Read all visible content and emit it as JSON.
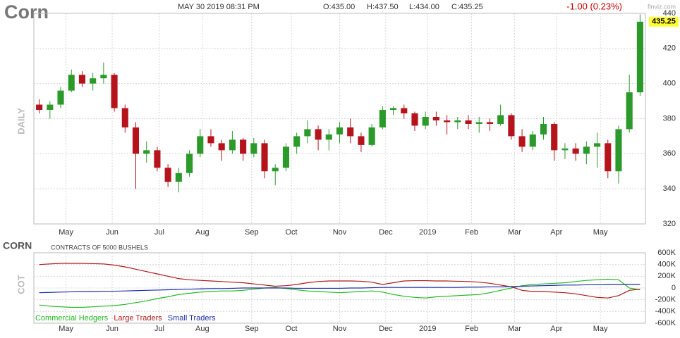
{
  "chart_data": [
    {
      "type": "candlestick",
      "title": "Corn",
      "timestamp": "MAY 30 2019 08:31 PM",
      "ohlc_labels": [
        "O:435.00",
        "H:437.50",
        "L:434.00",
        "C:435.25"
      ],
      "change_label": "-1.00 (0.23%)",
      "brand": "finviz.com",
      "ylabel": "DAILY",
      "last_label": "435.25",
      "up_color": "#2b9a2b",
      "down_color": "#b5141c",
      "grid": true,
      "xlim": [
        0,
        57
      ],
      "xticks": [
        {
          "value": 3.0,
          "label": "May"
        },
        {
          "value": 7.3,
          "label": "Jun"
        },
        {
          "value": 11.7,
          "label": "Jul"
        },
        {
          "value": 15.7,
          "label": "Aug"
        },
        {
          "value": 20.3,
          "label": "Sep"
        },
        {
          "value": 24.0,
          "label": "Oct"
        },
        {
          "value": 28.5,
          "label": "Nov"
        },
        {
          "value": 32.8,
          "label": "Dec"
        },
        {
          "value": 36.7,
          "label": "2019"
        },
        {
          "value": 40.8,
          "label": "Feb"
        },
        {
          "value": 44.8,
          "label": "Mar"
        },
        {
          "value": 48.7,
          "label": "Apr"
        },
        {
          "value": 52.8,
          "label": "May"
        }
      ],
      "ylim": [
        320,
        440
      ],
      "yticks": [
        320,
        340,
        360,
        380,
        400,
        420,
        440
      ],
      "open": [
        388,
        385,
        388,
        396,
        405,
        400,
        403,
        405,
        386,
        375,
        360,
        362,
        352,
        344,
        349,
        360,
        370,
        366,
        362,
        368,
        360,
        366,
        350,
        352,
        364,
        370,
        374,
        368,
        371,
        375,
        370,
        365,
        375,
        385,
        386,
        383,
        376,
        381,
        379,
        378,
        379,
        377,
        378,
        377,
        382,
        370,
        364,
        371,
        377,
        362,
        363,
        360,
        364,
        366,
        350,
        374,
        395
      ],
      "high": [
        391,
        390,
        398,
        408,
        407,
        406,
        412,
        406,
        388,
        378,
        367,
        364,
        354,
        352,
        362,
        374,
        374,
        368,
        373,
        369,
        369,
        368,
        354,
        366,
        372,
        379,
        376,
        374,
        378,
        380,
        372,
        377,
        387,
        387,
        388,
        384,
        384,
        384,
        382,
        381,
        382,
        381,
        380,
        388,
        383,
        374,
        373,
        381,
        378,
        366,
        366,
        367,
        372,
        368,
        376,
        405,
        439.5
      ],
      "low": [
        383,
        380,
        386,
        395,
        398,
        396,
        400,
        384,
        372,
        340,
        355,
        350,
        341,
        338,
        347,
        358,
        364,
        356,
        360,
        356,
        358,
        346,
        342,
        350,
        360,
        366,
        362,
        362,
        366,
        366,
        361,
        364,
        374,
        382,
        380,
        373,
        374,
        376,
        371,
        374,
        374,
        372,
        373,
        376,
        368,
        361,
        362,
        368,
        356,
        357,
        356,
        354,
        352,
        346,
        343,
        372,
        393
      ],
      "close": [
        385,
        388,
        396,
        405,
        400,
        403,
        405,
        386,
        375,
        360,
        362,
        352,
        344,
        349,
        360,
        370,
        366,
        362,
        368,
        360,
        366,
        350,
        352,
        364,
        370,
        374,
        368,
        371,
        375,
        370,
        365,
        375,
        385,
        386,
        383,
        376,
        381,
        379,
        378,
        379,
        377,
        378,
        377,
        382,
        370,
        364,
        371,
        377,
        362,
        363,
        360,
        364,
        366,
        350,
        374,
        395,
        435.25
      ]
    },
    {
      "type": "line",
      "title": "CORN",
      "subtitle": "CONTRACTS OF 5000 BUSHELS",
      "ylabel": "COT",
      "grid": true,
      "xlim": [
        0,
        57
      ],
      "xticks": [
        {
          "value": 3.0,
          "label": "May"
        },
        {
          "value": 7.3,
          "label": "Jun"
        },
        {
          "value": 11.7,
          "label": "Jul"
        },
        {
          "value": 15.7,
          "label": "Aug"
        },
        {
          "value": 20.3,
          "label": "Sep"
        },
        {
          "value": 24.0,
          "label": "Oct"
        },
        {
          "value": 28.5,
          "label": "Nov"
        },
        {
          "value": 32.8,
          "label": "Dec"
        },
        {
          "value": 36.7,
          "label": "2019"
        },
        {
          "value": 40.8,
          "label": "Feb"
        },
        {
          "value": 44.8,
          "label": "Mar"
        },
        {
          "value": 48.7,
          "label": "Apr"
        },
        {
          "value": 52.8,
          "label": "May"
        }
      ],
      "ylim": [
        -600000,
        600000
      ],
      "yticks": [
        {
          "value": 600000,
          "label": "600K"
        },
        {
          "value": 400000,
          "label": "400K"
        },
        {
          "value": 200000,
          "label": "200K"
        },
        0,
        {
          "value": -200000,
          "label": "-200K"
        },
        {
          "value": -400000,
          "label": "-400K"
        },
        {
          "value": -600000,
          "label": "-600K"
        }
      ],
      "series": [
        {
          "name": "Commercial Hedgers",
          "color": "#22b822",
          "values": [
            -290000,
            -310000,
            -320000,
            -330000,
            -330000,
            -320000,
            -310000,
            -300000,
            -280000,
            -250000,
            -220000,
            -180000,
            -150000,
            -110000,
            -90000,
            -70000,
            -60000,
            -50000,
            -50000,
            -40000,
            -20000,
            0,
            10000,
            -10000,
            -30000,
            -50000,
            -60000,
            -70000,
            -80000,
            -70000,
            -60000,
            -50000,
            -70000,
            -110000,
            -140000,
            -160000,
            -170000,
            -150000,
            -140000,
            -130000,
            -120000,
            -110000,
            -80000,
            -40000,
            0,
            40000,
            60000,
            70000,
            80000,
            90000,
            110000,
            130000,
            140000,
            150000,
            140000,
            0,
            -30000
          ]
        },
        {
          "name": "Large Traders",
          "color": "#b01818",
          "values": [
            400000,
            410000,
            420000,
            420000,
            420000,
            415000,
            410000,
            390000,
            360000,
            320000,
            280000,
            240000,
            200000,
            160000,
            140000,
            130000,
            120000,
            110000,
            100000,
            90000,
            70000,
            50000,
            30000,
            40000,
            60000,
            90000,
            110000,
            120000,
            120000,
            120000,
            115000,
            100000,
            60000,
            90000,
            120000,
            125000,
            125000,
            120000,
            120000,
            115000,
            110000,
            100000,
            80000,
            50000,
            20000,
            -40000,
            -60000,
            -60000,
            -70000,
            -80000,
            -100000,
            -130000,
            -160000,
            -170000,
            -130000,
            -40000,
            -20000
          ]
        },
        {
          "name": "Small Traders",
          "color": "#1c2ea8",
          "values": [
            -80000,
            -75000,
            -70000,
            -65000,
            -60000,
            -60000,
            -55000,
            -55000,
            -50000,
            -45000,
            -40000,
            -35000,
            -30000,
            -25000,
            -20000,
            -15000,
            -10000,
            -10000,
            -5000,
            0,
            0,
            0,
            0,
            0,
            -5000,
            -5000,
            -5000,
            -5000,
            -5000,
            0,
            0,
            5000,
            10000,
            10000,
            10000,
            10000,
            10000,
            10000,
            10000,
            10000,
            15000,
            15000,
            20000,
            20000,
            25000,
            30000,
            35000,
            40000,
            45000,
            50000,
            50000,
            55000,
            55000,
            60000,
            60000,
            60000,
            60000
          ]
        }
      ]
    }
  ]
}
